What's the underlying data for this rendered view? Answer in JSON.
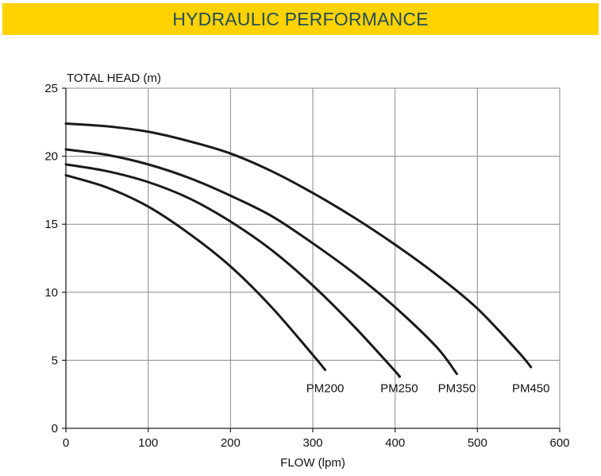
{
  "header": {
    "title": "HYDRAULIC PERFORMANCE"
  },
  "colors": {
    "banner": "#ffd200",
    "title": "#1f4e5a",
    "grid": "#8a8a8a",
    "curve": "#1a1a1a"
  },
  "chart_data": {
    "type": "line",
    "title": "",
    "xlabel": "FLOW (lpm)",
    "ylabel": "TOTAL HEAD (m)",
    "xlim": [
      0,
      600
    ],
    "ylim": [
      0,
      25
    ],
    "xticks": [
      0,
      100,
      200,
      300,
      400,
      500,
      600
    ],
    "yticks": [
      0,
      5,
      10,
      15,
      20,
      25
    ],
    "grid": true,
    "series": [
      {
        "name": "PM200",
        "x": [
          0,
          50,
          100,
          150,
          200,
          250,
          300,
          315
        ],
        "y": [
          18.6,
          17.7,
          16.3,
          14.3,
          11.9,
          8.9,
          5.4,
          4.3
        ]
      },
      {
        "name": "PM250",
        "x": [
          0,
          50,
          100,
          150,
          200,
          250,
          300,
          350,
          400,
          405
        ],
        "y": [
          19.4,
          18.9,
          18.1,
          16.9,
          15.2,
          13.1,
          10.5,
          7.5,
          4.2,
          3.8
        ]
      },
      {
        "name": "PM350",
        "x": [
          0,
          50,
          100,
          150,
          200,
          250,
          300,
          350,
          400,
          450,
          475
        ],
        "y": [
          20.5,
          20.1,
          19.4,
          18.4,
          17.1,
          15.6,
          13.6,
          11.4,
          8.9,
          6.0,
          4.0
        ]
      },
      {
        "name": "PM450",
        "x": [
          0,
          50,
          100,
          150,
          200,
          250,
          300,
          350,
          400,
          450,
          500,
          550,
          565
        ],
        "y": [
          22.4,
          22.2,
          21.8,
          21.1,
          20.2,
          18.9,
          17.3,
          15.5,
          13.5,
          11.3,
          8.8,
          5.6,
          4.5
        ]
      }
    ]
  }
}
